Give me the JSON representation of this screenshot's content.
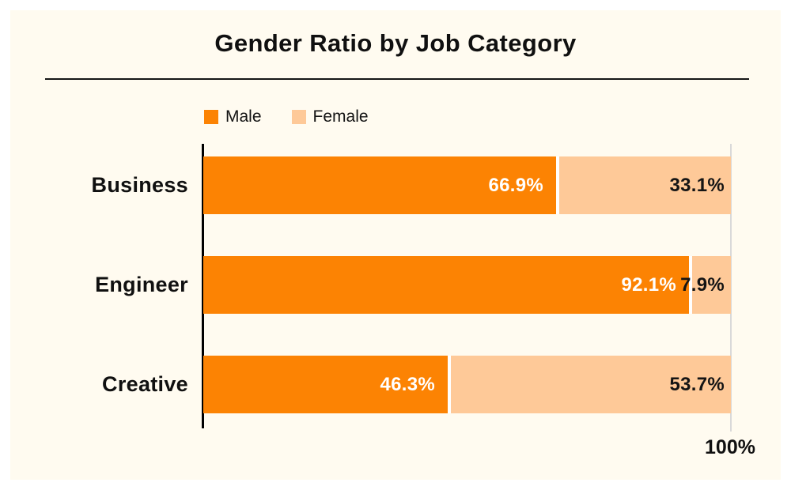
{
  "panel": {
    "page_background": "#FFFFFF",
    "background": "#FFFBF0"
  },
  "colors": {
    "axis": "#000000",
    "gridline_100": "#D9D9D9",
    "divider": "#161616",
    "text": "#101010"
  },
  "chart_data": {
    "type": "bar",
    "orientation": "horizontal",
    "stacked": true,
    "title": "Gender Ratio by Job Category",
    "categories": [
      "Business",
      "Engineer",
      "Creative"
    ],
    "series": [
      {
        "name": "Male",
        "color": "#FC8303",
        "label_color": "#FFFFFF",
        "values": [
          66.9,
          92.1,
          46.3
        ]
      },
      {
        "name": "Female",
        "color": "#FEC998",
        "label_color": "#141414",
        "values": [
          33.1,
          7.9,
          53.7
        ]
      }
    ],
    "value_suffix": "%",
    "xlim": [
      0,
      100
    ],
    "axis_max_label": "100%",
    "legend_position": "top-left",
    "grid": "single-vertical-line-at-100"
  }
}
